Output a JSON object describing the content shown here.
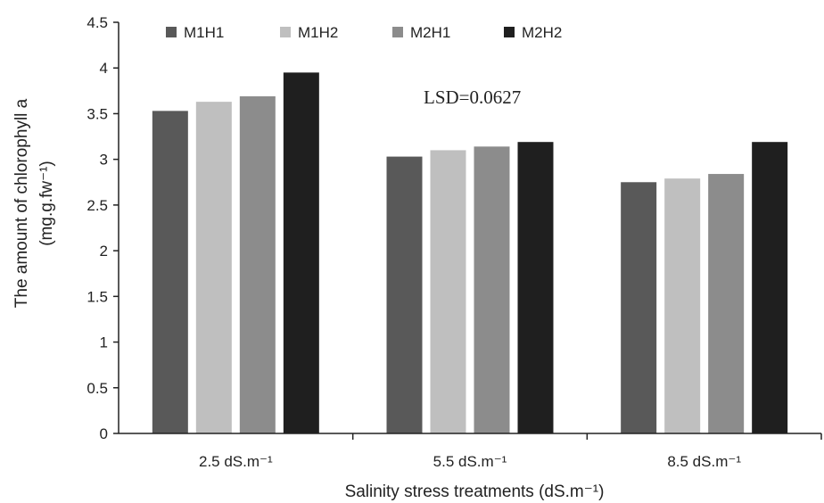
{
  "chart_data": {
    "type": "bar",
    "categories": [
      "2.5 dS.m⁻¹",
      "5.5 dS.m⁻¹",
      "8.5 dS.m⁻¹"
    ],
    "series": [
      {
        "name": "M1H1",
        "color": "#595959",
        "values": [
          3.53,
          3.03,
          2.75
        ]
      },
      {
        "name": "M1H2",
        "color": "#bfbfbf",
        "values": [
          3.63,
          3.1,
          2.79
        ]
      },
      {
        "name": "M2H1",
        "color": "#8c8c8c",
        "values": [
          3.69,
          3.14,
          2.84
        ]
      },
      {
        "name": "M2H2",
        "color": "#1f1f1f",
        "values": [
          3.95,
          3.19,
          3.19
        ]
      }
    ],
    "ylim": [
      0,
      4.5
    ],
    "yticks": [
      "0",
      "0.5",
      "1",
      "1.5",
      "2",
      "2.5",
      "3",
      "3.5",
      "4",
      "4.5"
    ],
    "ylabel_line1": "The amount of chlorophyll a",
    "ylabel_line2": "(mg.g.fw⁻¹)",
    "xlabel": "Salinity stress treatments (dS.m⁻¹)",
    "annotation": "LSD=0.0627",
    "legend_position": "top",
    "grid": false
  }
}
